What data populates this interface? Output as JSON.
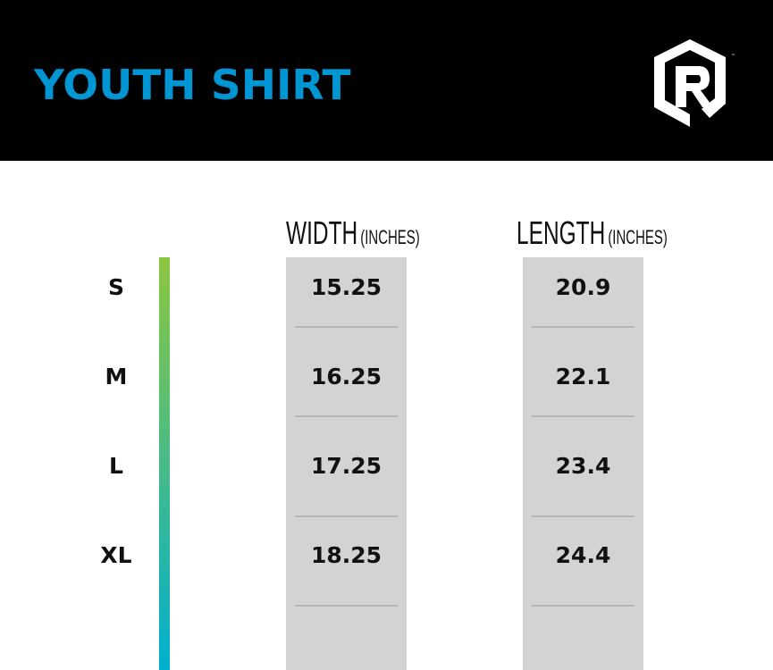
{
  "header": {
    "title": "YOUTH SHIRT",
    "logo_text": "R",
    "brand_color": "#0095d3"
  },
  "columns": [
    {
      "label": "WIDTH",
      "unit": "(INCHES)",
      "values": [
        "15.25",
        "16.25",
        "17.25",
        "18.25"
      ]
    },
    {
      "label": "LENGTH",
      "unit": "(INCHES)",
      "values": [
        "20.9",
        "22.1",
        "23.4",
        "24.4"
      ]
    }
  ],
  "sizes": [
    "S",
    "M",
    "L",
    "XL"
  ],
  "gradient": {
    "from": "#8dc63f",
    "to": "#00b0cf"
  }
}
